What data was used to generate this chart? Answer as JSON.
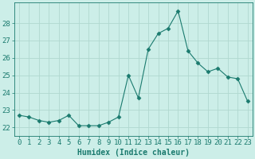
{
  "x": [
    0,
    1,
    2,
    3,
    4,
    5,
    6,
    7,
    8,
    9,
    10,
    11,
    12,
    13,
    14,
    15,
    16,
    17,
    18,
    19,
    20,
    21,
    22,
    23
  ],
  "y": [
    22.7,
    22.6,
    22.4,
    22.3,
    22.4,
    22.7,
    22.1,
    22.1,
    22.1,
    22.3,
    22.6,
    25.0,
    23.7,
    26.5,
    27.4,
    27.7,
    28.7,
    26.4,
    25.7,
    25.2,
    25.4,
    24.9,
    24.8,
    23.5
  ],
  "line_color": "#1a7a6e",
  "marker": "D",
  "marker_size": 2.5,
  "background_color": "#cceee8",
  "grid_color": "#b0d8d0",
  "xlabel": "Humidex (Indice chaleur)",
  "ylim": [
    21.5,
    29.2
  ],
  "xlim": [
    -0.5,
    23.5
  ],
  "yticks": [
    22,
    23,
    24,
    25,
    26,
    27,
    28
  ],
  "xtick_labels": [
    "0",
    "1",
    "2",
    "3",
    "4",
    "5",
    "6",
    "7",
    "8",
    "9",
    "10",
    "11",
    "12",
    "13",
    "14",
    "15",
    "16",
    "17",
    "18",
    "19",
    "20",
    "21",
    "22",
    "23"
  ],
  "xlabel_fontsize": 7,
  "tick_fontsize": 6.5
}
